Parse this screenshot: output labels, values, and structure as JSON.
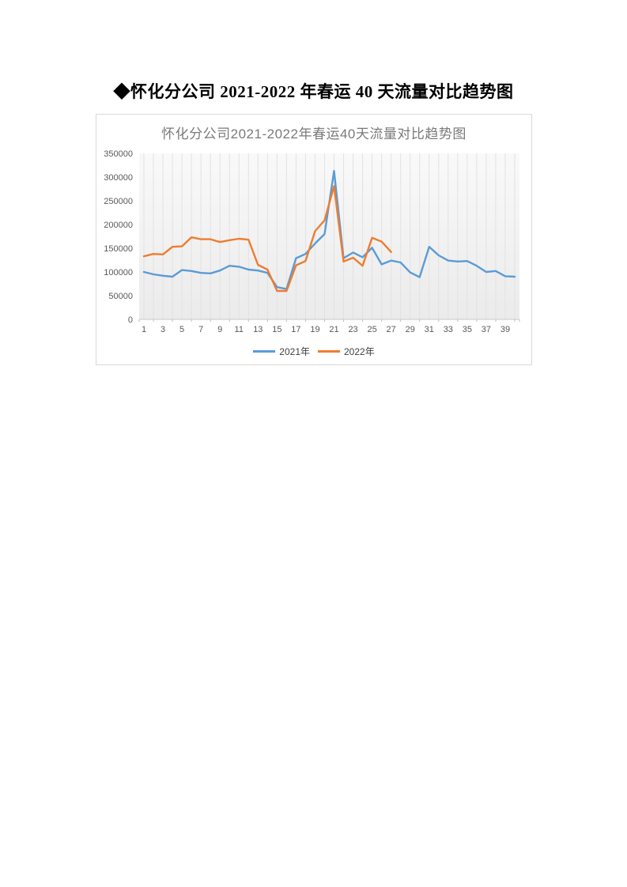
{
  "page": {
    "title": "◆怀化分公司 2021-2022 年春运 40 天流量对比趋势图"
  },
  "chart_data": {
    "type": "line",
    "title": "怀化分公司2021-2022年春运40天流量对比趋势图",
    "x": [
      1,
      2,
      3,
      4,
      5,
      6,
      7,
      8,
      9,
      10,
      11,
      12,
      13,
      14,
      15,
      16,
      17,
      18,
      19,
      20,
      21,
      22,
      23,
      24,
      25,
      26,
      27,
      28,
      29,
      30,
      31,
      32,
      33,
      34,
      35,
      36,
      37,
      38,
      39,
      40
    ],
    "x_label_interval": 2,
    "y_ticks": [
      0,
      50000,
      100000,
      150000,
      200000,
      250000,
      300000,
      350000
    ],
    "ylim": [
      0,
      350000
    ],
    "grid": "vertical",
    "legend_position": "bottom",
    "series": [
      {
        "name": "2021年",
        "color": "#5B9BD5",
        "values": [
          100000,
          95000,
          92000,
          90000,
          104000,
          102000,
          98000,
          97000,
          103000,
          113000,
          111000,
          105000,
          103000,
          98000,
          68000,
          64000,
          129000,
          138000,
          160000,
          180000,
          313000,
          129000,
          141000,
          131000,
          151000,
          116000,
          124000,
          120000,
          99000,
          89000,
          153000,
          135000,
          124000,
          122000,
          123000,
          113000,
          100000,
          102000,
          91000,
          90000
        ]
      },
      {
        "name": "2022年",
        "color": "#ED7D31",
        "values": [
          133000,
          138000,
          137000,
          153000,
          154000,
          173000,
          169000,
          169000,
          163000,
          167000,
          170000,
          168000,
          115000,
          105000,
          60000,
          60000,
          114000,
          123000,
          186000,
          209000,
          281000,
          122000,
          130000,
          113000,
          172000,
          164000,
          142000
        ]
      }
    ],
    "plot_bg_top": "#f9f9f9",
    "plot_bg_bottom": "#ebebeb"
  }
}
